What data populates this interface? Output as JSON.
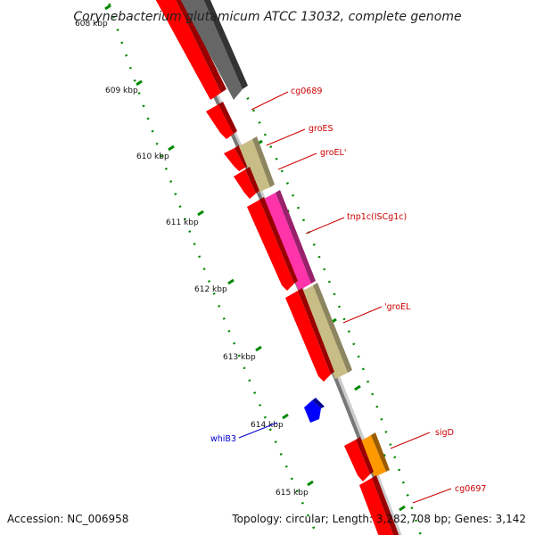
{
  "title": "Corynebacterium glutamicum ATCC 13032, complete genome",
  "footer": {
    "accession": "Accession: NC_006958",
    "topology": "Topology: circular; Length: 3,282,708 bp; Genes: 3,142"
  },
  "ticks": [
    {
      "label": "608 kbp"
    },
    {
      "label": "609 kbp"
    },
    {
      "label": "610 kbp"
    },
    {
      "label": "611 kbp"
    },
    {
      "label": "612 kbp"
    },
    {
      "label": "613 kbp"
    },
    {
      "label": "614 kbp"
    },
    {
      "label": "615 kbp"
    }
  ],
  "gene_labels": [
    {
      "name": "cg0689",
      "color": "#cc0000"
    },
    {
      "name": "groES",
      "color": "#cc0000"
    },
    {
      "name": "groEL'",
      "color": "#cc0000"
    },
    {
      "name": "tnp1c(ISCg1c)",
      "color": "#cc0000"
    },
    {
      "name": "'groEL",
      "color": "#cc0000"
    },
    {
      "name": "whiB3",
      "color": "#0000cc"
    },
    {
      "name": "sigD",
      "color": "#cc0000"
    },
    {
      "name": "cg0697",
      "color": "#cc0000"
    }
  ],
  "colors": {
    "cds": "#ff0000",
    "rna": "#666666",
    "pseudo_gene": "#c8bd84",
    "mobile_element": "#ff33aa",
    "sigma_factor": "#ff9900",
    "reverse_strand": "#0000ff",
    "ticks": "#008800",
    "backbone": "#777777"
  }
}
